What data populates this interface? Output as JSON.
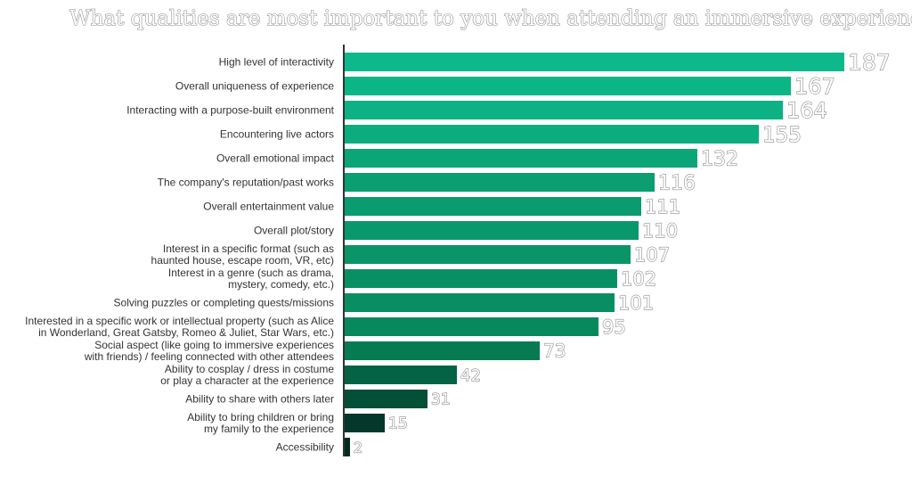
{
  "chart_data": {
    "type": "bar",
    "orientation": "horizontal",
    "title": "What qualities are most important to you when attending an immersive experience?",
    "xlabel": "",
    "ylabel": "",
    "xlim": [
      0,
      187
    ],
    "grid": false,
    "legend": "none",
    "categories": [
      [
        "High level of interactivity"
      ],
      [
        "Overall uniqueness of experience"
      ],
      [
        "Interacting with a purpose-built environment"
      ],
      [
        "Encountering live actors"
      ],
      [
        "Overall emotional impact"
      ],
      [
        "The company's reputation/past works"
      ],
      [
        "Overall entertainment value"
      ],
      [
        "Overall plot/story"
      ],
      [
        "Interest in a specific format (such as",
        "haunted house, escape room, VR, etc)"
      ],
      [
        "Interest in a genre (such as drama,",
        "mystery, comedy, etc.)"
      ],
      [
        "Solving puzzles or completing quests/missions"
      ],
      [
        "Interested in a specific work or intellectual property (such as Alice",
        "in Wonderland, Great Gatsby, Romeo & Juliet, Star Wars, etc.)"
      ],
      [
        "Social aspect (like going to immersive experiences",
        "with friends) / feeling connected with other attendees"
      ],
      [
        "Ability to cosplay / dress in costume",
        "or play a character at the experience"
      ],
      [
        "Ability to share with others later"
      ],
      [
        "Ability to bring children or bring",
        "my family to the experience"
      ],
      [
        "Accessibility"
      ]
    ],
    "values": [
      187,
      167,
      164,
      155,
      132,
      116,
      111,
      110,
      107,
      102,
      101,
      95,
      73,
      42,
      31,
      15,
      2
    ],
    "colors": [
      "#0db98a",
      "#0cb586",
      "#0cb283",
      "#0bac7e",
      "#0ba577",
      "#0a9e71",
      "#0a9b6e",
      "#09986b",
      "#099568",
      "#089064",
      "#088e62",
      "#07895d",
      "#067a50",
      "#056345",
      "#044f37",
      "#03382a",
      "#022b20"
    ]
  }
}
